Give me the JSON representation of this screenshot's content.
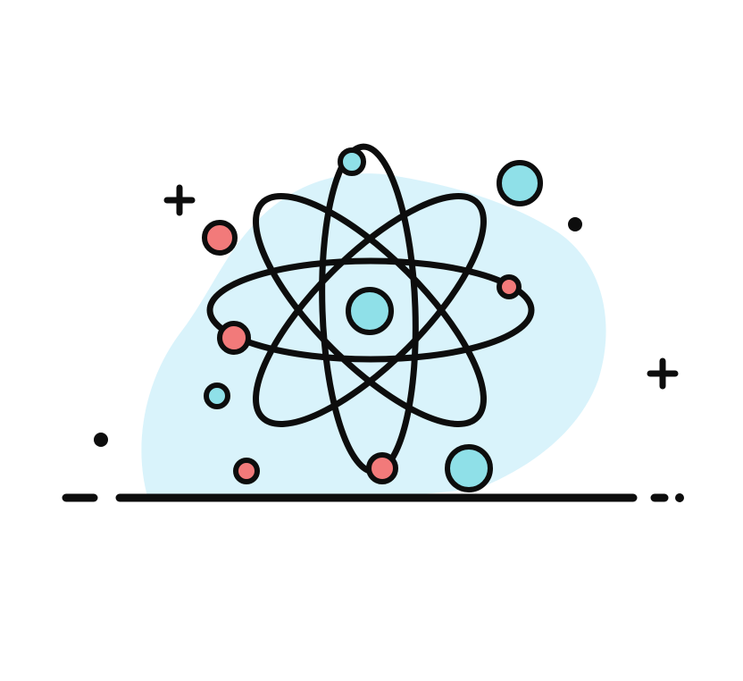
{
  "illustration": {
    "subject": "atom-icon",
    "colors": {
      "background": "#ffffff",
      "blob": "#d9f3fb",
      "outline": "#0d0d0d",
      "cyan": "#8fe0e8",
      "red": "#f27a7a"
    },
    "decorations": {
      "plus_signs": 2,
      "dots": 3
    }
  }
}
